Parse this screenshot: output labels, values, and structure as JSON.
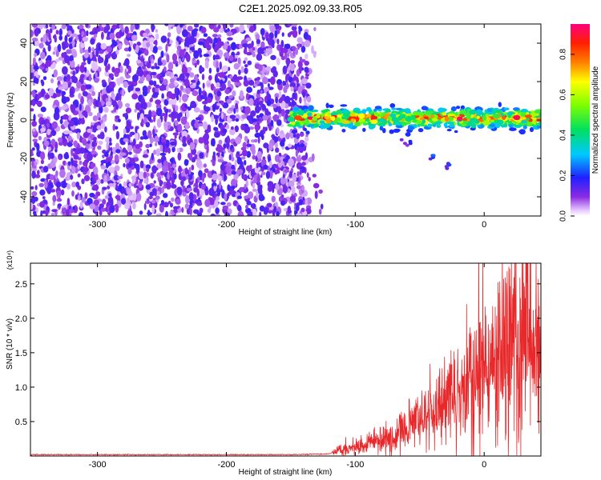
{
  "title": "C2E1.2025.092.09.33.R05",
  "colors": {
    "signal": "#e8282a",
    "axis": "#000000"
  },
  "chart_data": [
    {
      "type": "heatmap",
      "xlabel": "Height of straight line (km)",
      "ylabel": "Frequency (Hz)",
      "xlim": [
        -352,
        44
      ],
      "ylim": [
        -50,
        50
      ],
      "xticks": [
        -300,
        -200,
        -100,
        0
      ],
      "yticks": [
        -40,
        -20,
        0,
        20,
        40
      ],
      "colorbar": {
        "label": "Normalized spectral amplitude",
        "range": [
          0,
          0.95
        ],
        "ticks": [
          0.0,
          0.2,
          0.4,
          0.6,
          0.8
        ],
        "tick_labels": [
          "0.0",
          "0.2",
          "0.4",
          "0.6",
          "0.8"
        ],
        "colormap": "rainbow (white-violet-blue-cyan-green-yellow-red-magenta)"
      },
      "features": [
        {
          "name": "noise region",
          "x_range": [
            -352,
            -135
          ],
          "f_range": [
            -50,
            50
          ],
          "amplitude": 0.1
        },
        {
          "name": "carrier band",
          "x_range": [
            -150,
            44
          ],
          "f_center": 1,
          "f_halfwidth": 4,
          "amplitude": 0.5
        },
        {
          "name": "secondary track",
          "points": [
            [
              -60,
              -12
            ],
            [
              -40,
              -18
            ],
            [
              -28,
              -24
            ]
          ],
          "amplitude": 0.15
        }
      ]
    },
    {
      "type": "line",
      "xlabel": "Height of straight line (km)",
      "ylabel": "SNR (10 * v/v)",
      "y_multiplier": "(x10⁴)",
      "xlim": [
        -352,
        44
      ],
      "ylim": [
        0,
        2.8
      ],
      "xticks": [
        -300,
        -200,
        -100,
        0
      ],
      "yticks": [
        0.5,
        1.0,
        1.5,
        2.0,
        2.5
      ],
      "series": [
        {
          "x": [
            -352,
            -300,
            -250,
            -200,
            -150,
            -120,
            -110,
            -100,
            -90,
            -80,
            -70,
            -60,
            -50,
            -40,
            -30,
            -20,
            -10,
            0,
            10,
            20,
            30,
            40,
            44
          ],
          "values": [
            0.02,
            0.02,
            0.02,
            0.02,
            0.02,
            0.03,
            0.12,
            0.15,
            0.2,
            0.25,
            0.3,
            0.45,
            0.55,
            0.6,
            0.8,
            0.9,
            1.1,
            1.3,
            1.5,
            1.7,
            1.85,
            1.95,
            1.9
          ]
        }
      ]
    }
  ]
}
